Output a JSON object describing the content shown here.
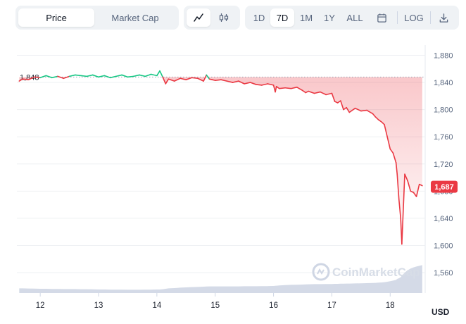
{
  "toolbar": {
    "metric_tabs": [
      {
        "label": "Price",
        "active": true
      },
      {
        "label": "Market Cap",
        "active": false
      }
    ],
    "chart_type_icons": [
      "line-chart-icon",
      "candlestick-icon"
    ],
    "ranges": [
      {
        "label": "1D",
        "active": false
      },
      {
        "label": "7D",
        "active": true
      },
      {
        "label": "1M",
        "active": false
      },
      {
        "label": "1Y",
        "active": false
      },
      {
        "label": "ALL",
        "active": false
      }
    ],
    "calendar_icon": "calendar-icon",
    "log_label": "LOG",
    "download_icon": "download-icon"
  },
  "colors": {
    "up": "#16c784",
    "down": "#ea3943",
    "volume": "#cfd6e4",
    "reference_line": "#9aa3b3"
  },
  "watermark": "CoinMarketCap",
  "chart_data": {
    "type": "line",
    "title": "",
    "xlabel": "",
    "ylabel": "USD",
    "reference_value": 1848,
    "reference_label": "1,848",
    "current_value": 1687,
    "current_label": "1,687",
    "ylim": [
      1530,
      1895
    ],
    "y_ticks": [
      1560,
      1600,
      1640,
      1680,
      1720,
      1760,
      1800,
      1840,
      1880
    ],
    "y_tick_labels": [
      "1,560",
      "1,600",
      "1,640",
      "1,680",
      "1,720",
      "1,760",
      "1,800",
      "1,840",
      "1,880"
    ],
    "x_ticks": [
      12,
      13,
      14,
      15,
      16,
      17,
      18
    ],
    "x_tick_labels": [
      "12",
      "13",
      "14",
      "15",
      "16",
      "17",
      "18"
    ],
    "xlim": [
      11.6,
      18.6
    ],
    "grid": true,
    "series": [
      {
        "x": [
          11.64,
          11.7,
          11.8,
          11.9,
          12.0,
          12.1,
          12.2,
          12.3,
          12.4,
          12.5,
          12.6,
          12.7,
          12.8,
          12.9,
          13.0,
          13.1,
          13.2,
          13.3,
          13.4,
          13.5,
          13.6,
          13.7,
          13.8,
          13.9,
          14.0,
          14.05,
          14.1,
          14.15,
          14.2,
          14.3,
          14.4,
          14.5,
          14.6,
          14.7,
          14.8,
          14.85,
          14.9,
          14.95,
          15.0,
          15.1,
          15.2,
          15.3,
          15.4,
          15.5,
          15.6,
          15.7,
          15.8,
          15.9,
          16.0,
          16.03,
          16.05,
          16.1,
          16.2,
          16.3,
          16.4,
          16.5,
          16.55,
          16.6,
          16.7,
          16.8,
          16.9,
          17.0,
          17.05,
          17.1,
          17.15,
          17.2,
          17.25,
          17.3,
          17.4,
          17.5,
          17.6,
          17.7,
          17.75,
          17.8,
          17.85,
          17.9,
          17.95,
          18.0,
          18.05,
          18.1,
          18.12,
          18.15,
          18.18,
          18.2,
          18.25,
          18.3,
          18.35,
          18.4,
          18.45,
          18.5,
          18.55
        ],
        "y": [
          1842,
          1845,
          1844,
          1848,
          1847,
          1850,
          1847,
          1849,
          1846,
          1849,
          1851,
          1850,
          1849,
          1851,
          1848,
          1850,
          1847,
          1849,
          1851,
          1848,
          1849,
          1851,
          1849,
          1852,
          1850,
          1857,
          1848,
          1838,
          1845,
          1842,
          1846,
          1844,
          1847,
          1846,
          1842,
          1851,
          1845,
          1844,
          1843,
          1844,
          1842,
          1840,
          1842,
          1838,
          1840,
          1837,
          1836,
          1838,
          1836,
          1826,
          1834,
          1831,
          1832,
          1831,
          1833,
          1828,
          1825,
          1827,
          1824,
          1826,
          1822,
          1824,
          1812,
          1810,
          1813,
          1800,
          1803,
          1796,
          1802,
          1798,
          1799,
          1794,
          1789,
          1785,
          1782,
          1778,
          1760,
          1742,
          1736,
          1722,
          1705,
          1668,
          1640,
          1602,
          1705,
          1695,
          1680,
          1678,
          1672,
          1690,
          1688
        ],
        "volume": [
          0.33,
          0.33,
          0.32,
          0.31,
          0.3,
          0.3,
          0.29,
          0.29,
          0.28,
          0.28,
          0.28,
          0.27,
          0.27,
          0.26,
          0.25,
          0.25,
          0.24,
          0.24,
          0.24,
          0.23,
          0.23,
          0.23,
          0.24,
          0.24,
          0.25,
          0.25,
          0.27,
          0.3,
          0.33,
          0.35,
          0.38,
          0.4,
          0.42,
          0.43,
          0.45,
          0.46,
          0.47,
          0.47,
          0.47,
          0.47,
          0.47,
          0.47,
          0.47,
          0.48,
          0.48,
          0.48,
          0.49,
          0.49,
          0.5,
          0.51,
          0.52,
          0.54,
          0.56,
          0.58,
          0.59,
          0.6,
          0.61,
          0.62,
          0.63,
          0.63,
          0.64,
          0.64,
          0.65,
          0.65,
          0.66,
          0.66,
          0.67,
          0.67,
          0.68,
          0.69,
          0.7,
          0.71,
          0.72,
          0.74,
          0.75,
          0.77,
          0.8,
          0.84,
          0.88,
          0.93,
          1.0,
          1.05,
          1.12,
          1.24,
          1.45,
          1.62,
          1.74,
          1.82,
          1.88,
          1.93,
          1.98
        ]
      }
    ]
  }
}
